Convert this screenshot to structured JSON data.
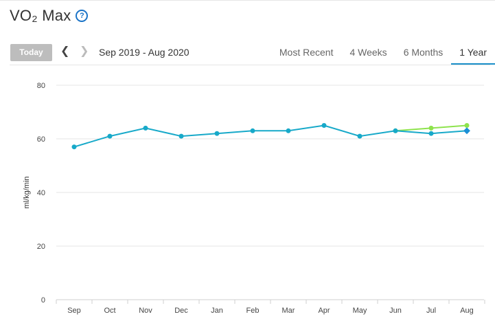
{
  "header": {
    "title": "VO₂ Max",
    "help_icon": "question-circle-icon"
  },
  "toolbar": {
    "today_label": "Today",
    "prev_icon": "chevron-left-icon",
    "next_icon": "chevron-right-icon",
    "date_range": "Sep 2019 - Aug 2020"
  },
  "tabs": [
    {
      "label": "Most Recent",
      "active": false
    },
    {
      "label": "4 Weeks",
      "active": false
    },
    {
      "label": "6 Months",
      "active": false
    },
    {
      "label": "1 Year",
      "active": true
    }
  ],
  "colors": {
    "accent": "#1a8fc9",
    "series_primary": "#17a9c9",
    "series_secondary": "#8ee34d",
    "today_button": "#bdbdbd"
  },
  "chart_data": {
    "type": "line",
    "title": "",
    "xlabel": "",
    "ylabel": "ml/kg/min",
    "categories": [
      "Sep",
      "Oct",
      "Nov",
      "Dec",
      "Jan",
      "Feb",
      "Mar",
      "Apr",
      "May",
      "Jun",
      "Jul",
      "Aug"
    ],
    "ylim": [
      0,
      80
    ],
    "yticks": [
      0,
      20,
      40,
      60,
      80
    ],
    "grid": true,
    "series": [
      {
        "values": [
          57,
          61,
          64,
          61,
          62,
          63,
          63,
          65,
          61,
          63,
          62,
          63
        ],
        "color": "#17a9c9"
      },
      {
        "values": [
          null,
          null,
          null,
          null,
          null,
          null,
          null,
          null,
          null,
          63,
          64,
          65
        ],
        "color": "#8ee34d"
      }
    ]
  }
}
